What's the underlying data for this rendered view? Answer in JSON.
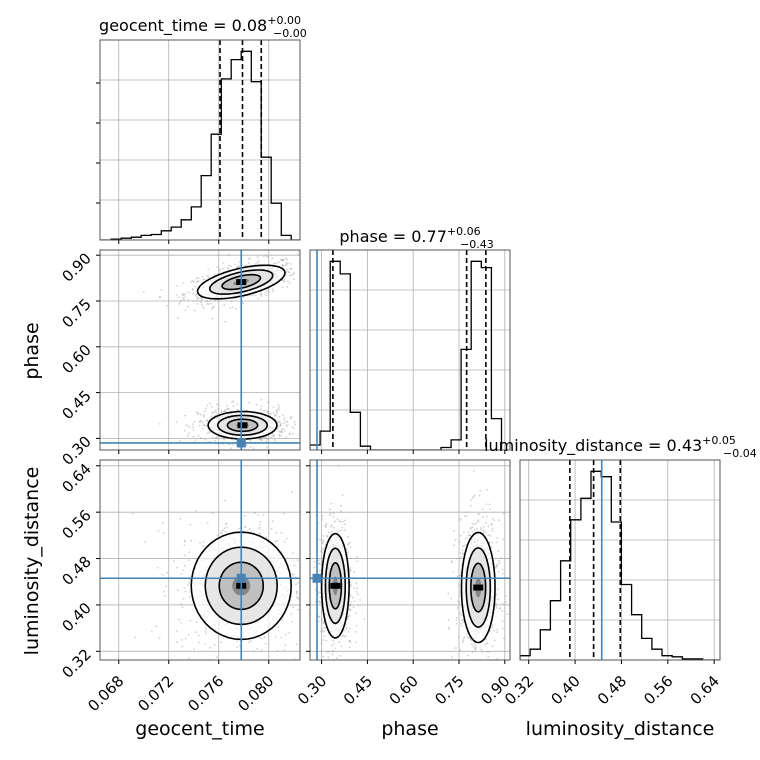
{
  "chart_data": {
    "type": "corner",
    "parameters": [
      "geocent_time",
      "phase",
      "luminosity_distance"
    ],
    "axis_labels": {
      "geocent_time": "geocent_time",
      "phase": "phase",
      "luminosity_distance": "luminosity_distance"
    },
    "titles": [
      {
        "param": "geocent_time",
        "name": "geocent_time",
        "median": "0.08",
        "plus": "+0.00",
        "minus": "−0.00"
      },
      {
        "param": "phase",
        "name": "phase",
        "median": "0.77",
        "plus": "+0.06",
        "minus": "−0.43"
      },
      {
        "param": "luminosity_distance",
        "name": "luminosity_distance",
        "median": "0.43",
        "plus": "+0.05",
        "minus": "−0.04"
      }
    ],
    "ranges": {
      "geocent_time": [
        0.0665,
        0.0825
      ],
      "phase": [
        0.262,
        0.917
      ],
      "luminosity_distance": [
        0.305,
        0.65
      ]
    },
    "ticks": {
      "geocent_time": [
        0.068,
        0.072,
        0.076,
        0.08
      ],
      "phase": [
        0.3,
        0.45,
        0.6,
        0.75,
        0.9
      ],
      "luminosity_distance": [
        0.32,
        0.4,
        0.48,
        0.56,
        0.64
      ]
    },
    "tick_labels": {
      "geocent_time": [
        "0.068",
        "0.072",
        "0.076",
        "0.080"
      ],
      "phase": [
        "0.30",
        "0.45",
        "0.60",
        "0.75",
        "0.90"
      ],
      "luminosity_distance": [
        "0.32",
        "0.40",
        "0.48",
        "0.56",
        "0.64"
      ]
    },
    "truths": {
      "geocent_time": 0.0778,
      "phase": 0.285,
      "luminosity_distance": 0.446
    },
    "quantiles": {
      "geocent_time": [
        0.0761,
        0.0779,
        0.0794
      ],
      "phase": [
        0.337,
        0.775,
        0.838
      ],
      "luminosity_distance": [
        0.391,
        0.432,
        0.478
      ]
    },
    "histograms": {
      "geocent_time": {
        "edges": [
          0.0666,
          0.0674,
          0.0682,
          0.069,
          0.0698,
          0.0706,
          0.0714,
          0.0722,
          0.073,
          0.0738,
          0.0746,
          0.0754,
          0.0762,
          0.077,
          0.0778,
          0.0786,
          0.0794,
          0.0802,
          0.081,
          0.0818,
          0.0826
        ],
        "counts": [
          0,
          1,
          2,
          3,
          5,
          6,
          10,
          14,
          22,
          36,
          70,
          115,
          175,
          196,
          205,
          172,
          90,
          40,
          5,
          0
        ]
      },
      "phase": {
        "edges": [
          0.262,
          0.295,
          0.328,
          0.361,
          0.394,
          0.427,
          0.46,
          0.493,
          0.526,
          0.559,
          0.592,
          0.625,
          0.658,
          0.691,
          0.724,
          0.757,
          0.79,
          0.823,
          0.856,
          0.889
        ],
        "counts": [
          4,
          15,
          150,
          140,
          30,
          3,
          0,
          0,
          0,
          0,
          0,
          0,
          0,
          2,
          8,
          80,
          150,
          145,
          25
        ]
      },
      "luminosity_distance": {
        "edges": [
          0.305,
          0.3225,
          0.34,
          0.3575,
          0.375,
          0.3925,
          0.41,
          0.4275,
          0.445,
          0.4625,
          0.48,
          0.4975,
          0.515,
          0.5325,
          0.55,
          0.5675,
          0.585,
          0.6025,
          0.62,
          0.6375,
          0.655
        ],
        "counts": [
          4,
          10,
          28,
          55,
          92,
          130,
          150,
          175,
          170,
          128,
          70,
          42,
          20,
          10,
          4,
          3,
          1,
          1,
          0,
          0
        ]
      }
    },
    "contours_2d": [
      {
        "x": "geocent_time",
        "y": "phase",
        "modes": [
          {
            "center": [
              0.0778,
              0.812
            ],
            "sx": 0.0014,
            "sy": 0.022,
            "rho": 0.55
          },
          {
            "center": [
              0.0779,
              0.343
            ],
            "sx": 0.0011,
            "sy": 0.018,
            "rho": 0.0
          }
        ]
      },
      {
        "x": "geocent_time",
        "y": "luminosity_distance",
        "modes": [
          {
            "center": [
              0.0778,
              0.433
            ],
            "sx": 0.0016,
            "sy": 0.037,
            "rho": 0.0
          }
        ]
      },
      {
        "x": "phase",
        "y": "luminosity_distance",
        "modes": [
          {
            "center": [
              0.345,
              0.433
            ],
            "sx": 0.018,
            "sy": 0.036,
            "rho": 0.0
          },
          {
            "center": [
              0.813,
              0.43
            ],
            "sx": 0.022,
            "sy": 0.038,
            "rho": 0.0
          }
        ]
      }
    ],
    "grid": true,
    "colors": {
      "truth": "#4682b4",
      "hist": "#000000",
      "points": "#9a9a9a",
      "grid": "#b0b0b0"
    }
  }
}
